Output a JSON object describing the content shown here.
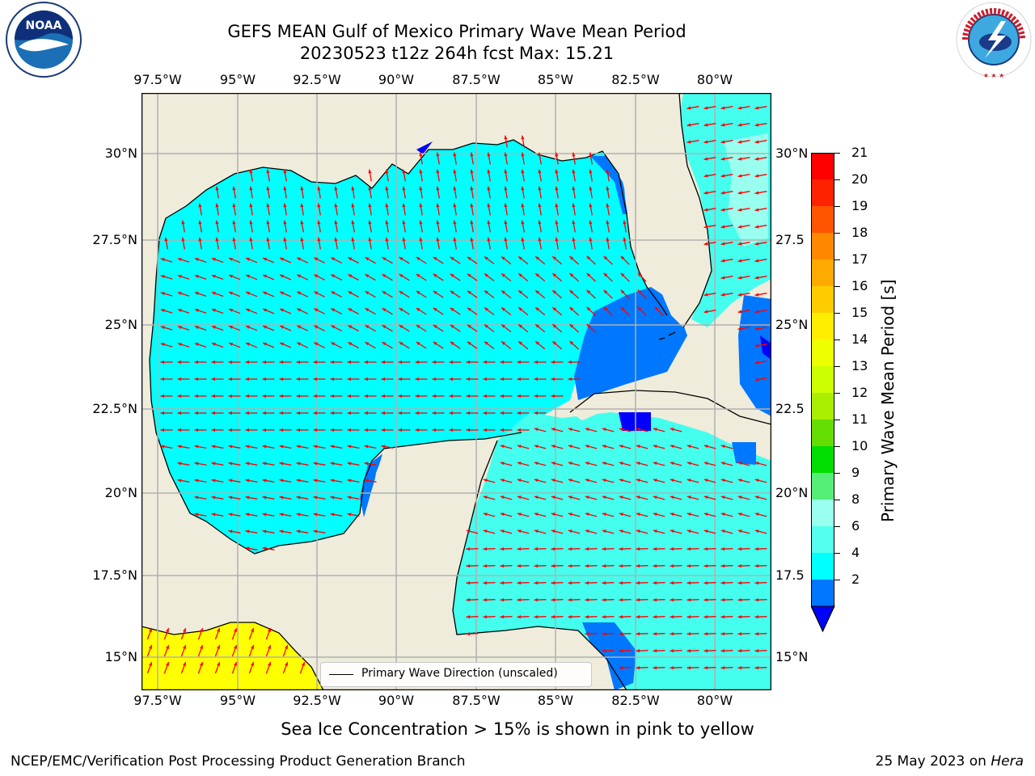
{
  "title": {
    "line1": "GEFS MEAN Gulf of Mexico Primary Wave Mean Period",
    "line2": "20230523 t12z 264h fcst   Max: 15.21"
  },
  "axes": {
    "lon_labels": [
      "97.5°W",
      "95°W",
      "92.5°W",
      "90°W",
      "87.5°W",
      "85°W",
      "82.5°W",
      "80°W"
    ],
    "lat_labels": [
      "30°N",
      "27.5°N",
      "25°N",
      "22.5°N",
      "20°N",
      "17.5°N",
      "15°N"
    ],
    "right_lat_labels": [
      "30°N",
      "27.5",
      "25°N",
      "22.5",
      "20°N",
      "17.5",
      "15°N"
    ]
  },
  "colorbar": {
    "title": "Primary Wave Mean Period [s]",
    "ticks": [
      "21",
      "20",
      "19",
      "18",
      "17",
      "16",
      "15",
      "14",
      "13",
      "12",
      "11",
      "10",
      "9",
      "8",
      "6",
      "4",
      "2"
    ],
    "colors": [
      "#ff0000",
      "#ff2200",
      "#ff5500",
      "#ff8800",
      "#ffaa00",
      "#ffcc00",
      "#ffee00",
      "#eeff00",
      "#ccff00",
      "#aaee00",
      "#66dd00",
      "#00dd00",
      "#55ee77",
      "#99ffee",
      "#55ffee",
      "#00ffff",
      "#0077ff"
    ],
    "extend_color": "#0000ff"
  },
  "legend": {
    "label": "Primary Wave Direction (unscaled)"
  },
  "caption": "Sea Ice Concentration > 15% is shown in pink to yellow",
  "footer": {
    "left": "NCEP/EMC/Verification Post Processing Product Generation Branch",
    "right_prefix": "25 May 2023 on ",
    "right_host": "Hera"
  },
  "logos": {
    "left": "NOAA",
    "right": "NATIONAL WEATHER SERVICE"
  },
  "map_colors": {
    "land": "#efecdc",
    "sea": "#00ffff",
    "sea_light": "#44ffee",
    "sea_dark": "#0077ff",
    "ice": "#ffff00",
    "arrow": "#ff0000",
    "grid": "#b0b0b0"
  }
}
